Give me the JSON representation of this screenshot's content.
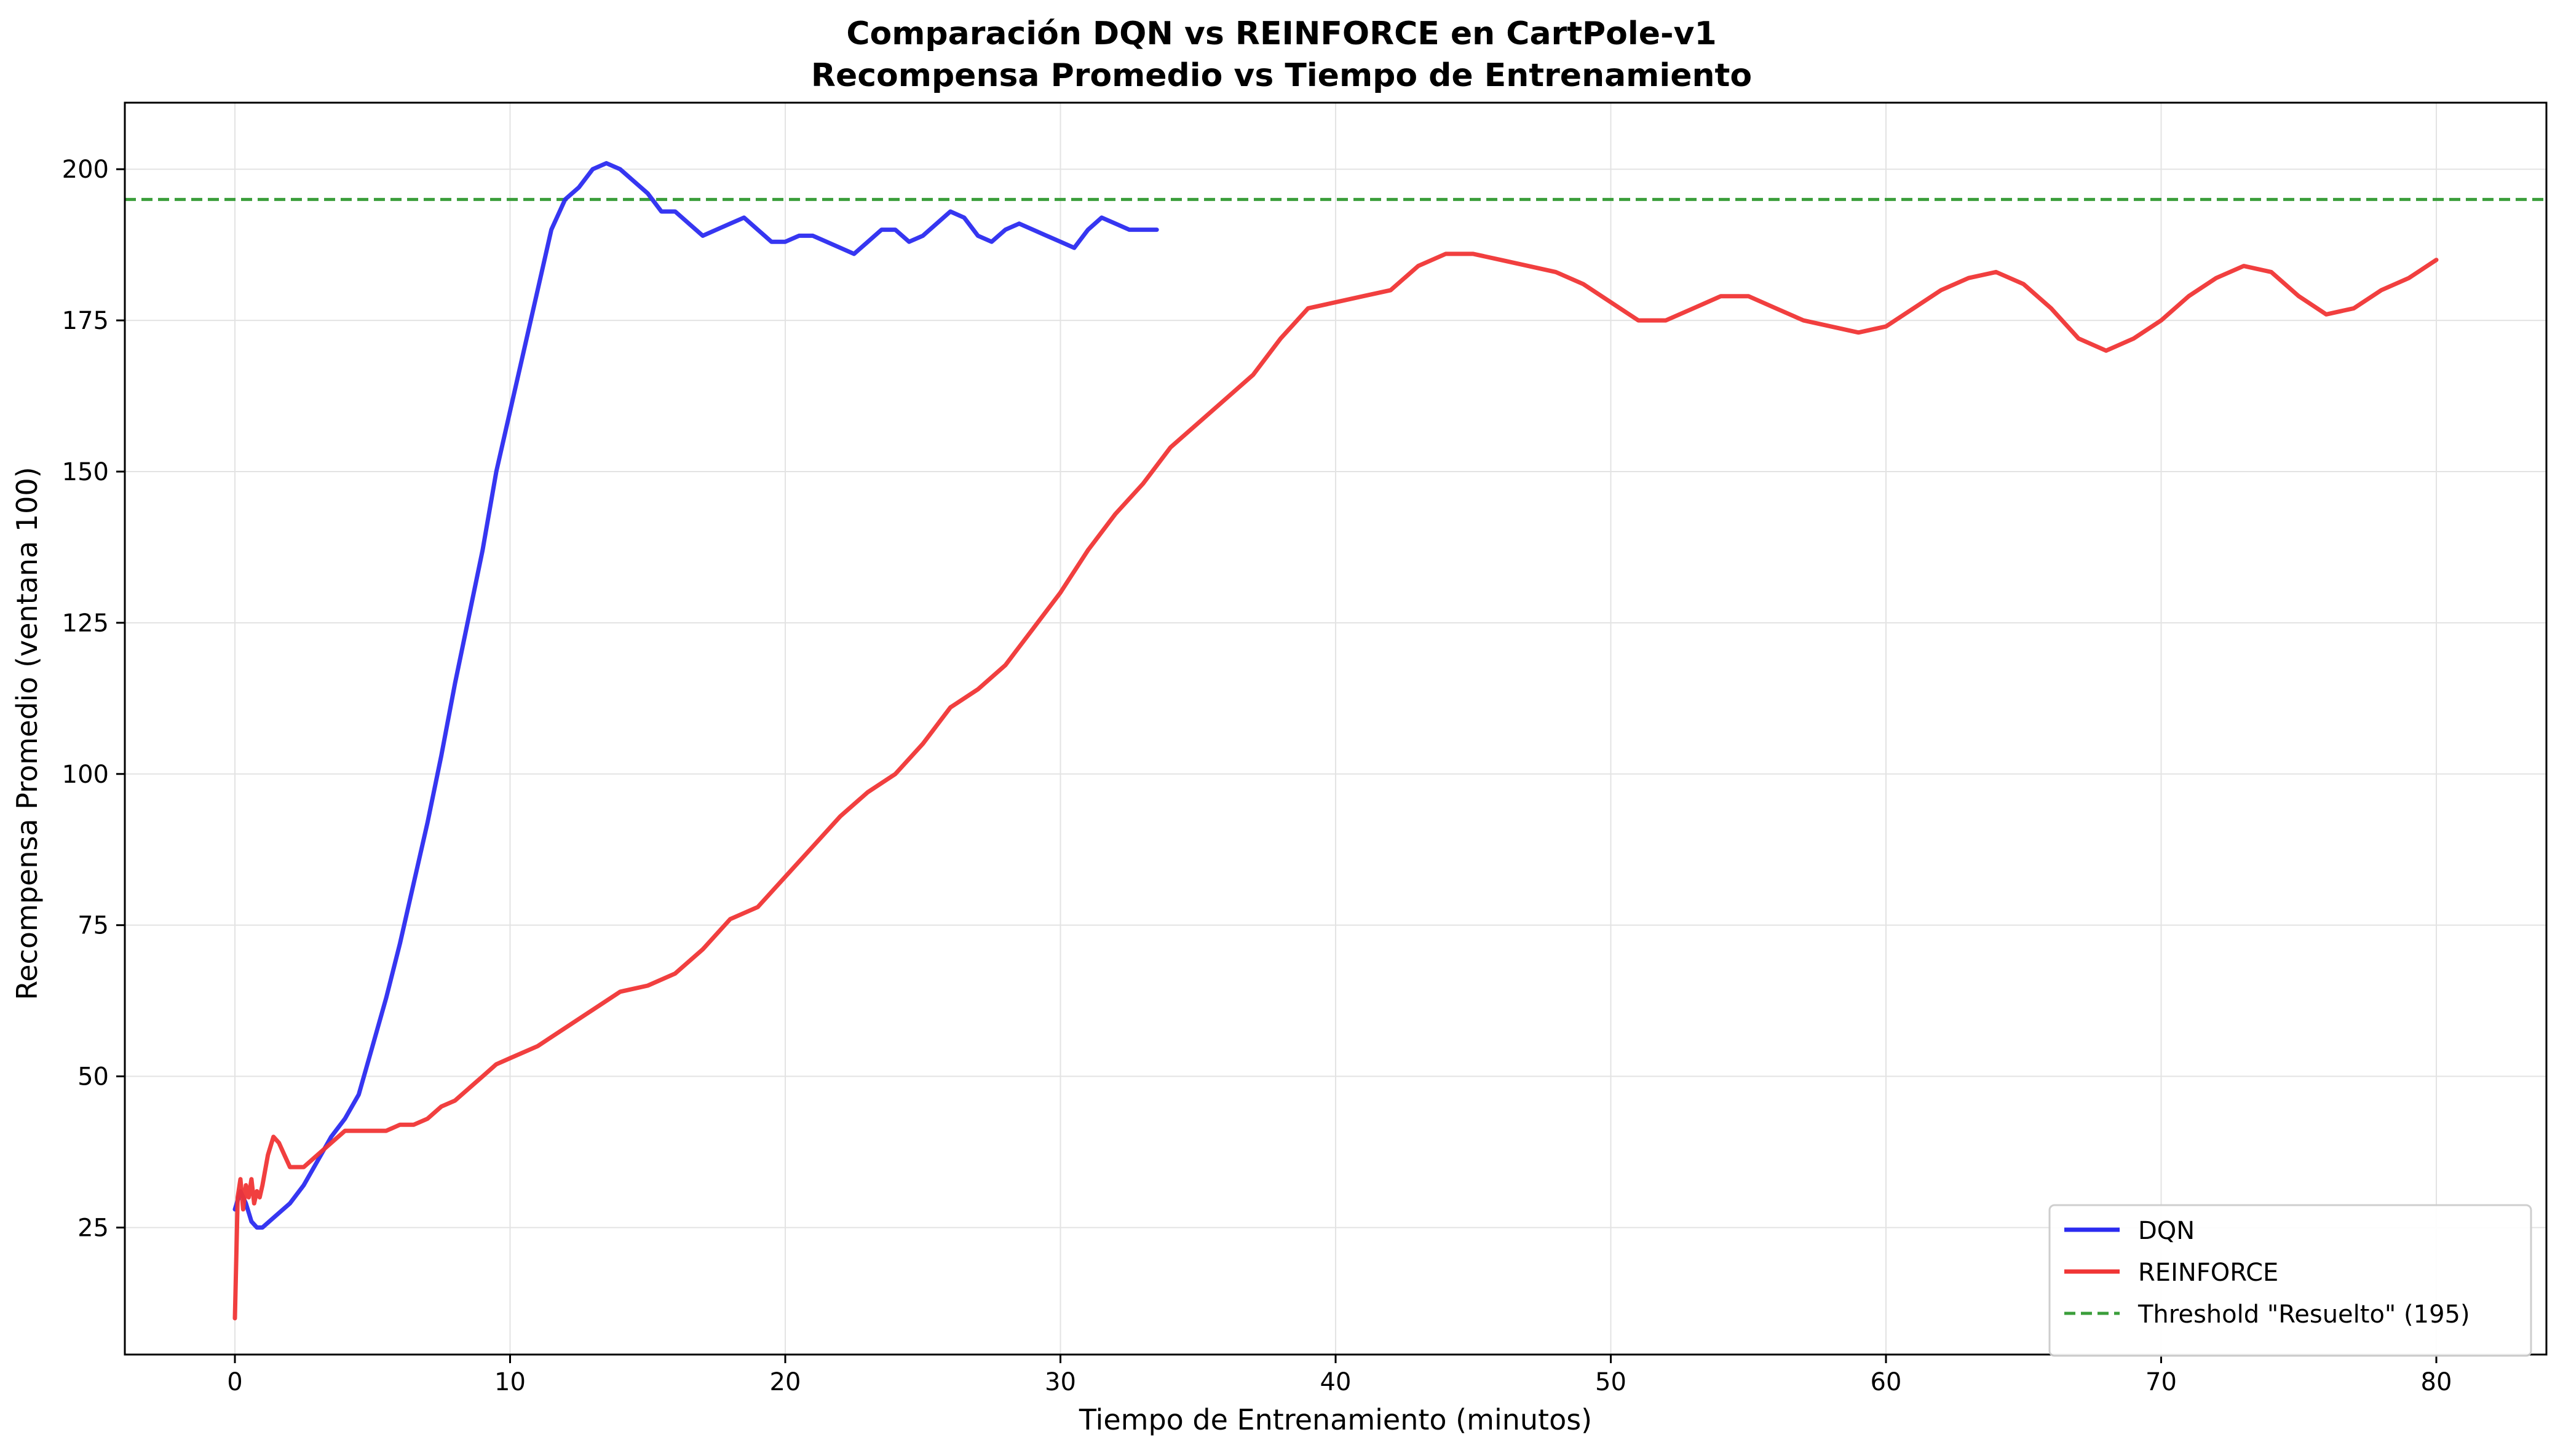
{
  "chart_data": {
    "type": "line",
    "title": "Comparación DQN vs REINFORCE en CartPole-v1",
    "subtitle": "Recompensa Promedio vs Tiempo de Entrenamiento",
    "xlabel": "Tiempo de Entrenamiento (minutos)",
    "ylabel": "Recompensa Promedio (ventana 100)",
    "xlim": [
      -4,
      84
    ],
    "ylim": [
      4,
      211
    ],
    "xticks": [
      0,
      10,
      20,
      30,
      40,
      50,
      60,
      70,
      80
    ],
    "yticks": [
      25,
      50,
      75,
      100,
      125,
      150,
      175,
      200
    ],
    "grid": true,
    "legend_position": "lower-right",
    "series": [
      {
        "name": "DQN",
        "color": "#2b2bf0",
        "x": [
          0,
          0.2,
          0.4,
          0.6,
          0.8,
          1,
          1.5,
          2,
          2.5,
          3,
          3.5,
          4,
          4.5,
          5,
          5.5,
          6,
          6.5,
          7,
          7.5,
          8,
          8.5,
          9,
          9.5,
          10,
          10.5,
          11,
          11.5,
          12,
          12.5,
          13,
          13.5,
          14,
          14.5,
          15,
          15.5,
          16,
          16.5,
          17,
          17.5,
          18,
          18.5,
          19,
          19.5,
          20,
          20.5,
          21,
          21.5,
          22,
          22.5,
          23,
          23.5,
          24,
          24.5,
          25,
          25.5,
          26,
          26.5,
          27,
          27.5,
          28,
          28.5,
          29,
          29.5,
          30,
          30.5,
          31,
          31.5,
          32,
          32.5,
          33,
          33.5
        ],
        "y": [
          28,
          31,
          29,
          26,
          25,
          25,
          27,
          29,
          32,
          36,
          40,
          43,
          47,
          55,
          63,
          72,
          82,
          92,
          103,
          115,
          126,
          137,
          150,
          160,
          170,
          180,
          190,
          195,
          197,
          200,
          201,
          200,
          198,
          196,
          193,
          193,
          191,
          189,
          190,
          191,
          192,
          190,
          188,
          188,
          189,
          189,
          188,
          187,
          186,
          188,
          190,
          190,
          188,
          189,
          191,
          193,
          192,
          189,
          188,
          190,
          191,
          190,
          189,
          188,
          187,
          190,
          192,
          191,
          190,
          190,
          190
        ],
        "x_clip": [
          0,
          33.4
        ]
      },
      {
        "name": "REINFORCE",
        "color": "#f03535",
        "x": [
          0,
          0.1,
          0.2,
          0.3,
          0.4,
          0.5,
          0.6,
          0.7,
          0.8,
          0.9,
          1,
          1.2,
          1.4,
          1.6,
          1.8,
          2,
          2.5,
          3,
          3.5,
          4,
          4.5,
          5,
          5.5,
          6,
          6.5,
          7,
          7.5,
          8,
          8.5,
          9,
          9.5,
          10,
          11,
          12,
          13,
          14,
          15,
          16,
          17,
          18,
          19,
          20,
          21,
          22,
          23,
          24,
          25,
          26,
          27,
          28,
          29,
          30,
          31,
          32,
          33,
          34,
          35,
          36,
          37,
          38,
          39,
          40,
          41,
          42,
          43,
          44,
          45,
          46,
          47,
          48,
          49,
          50,
          51,
          52,
          53,
          54,
          55,
          56,
          57,
          58,
          59,
          60,
          61,
          62,
          63,
          64,
          65,
          66,
          67,
          68,
          69,
          70,
          71,
          72,
          73,
          74,
          75,
          76,
          77,
          78,
          79,
          80
        ],
        "y": [
          10,
          30,
          33,
          28,
          32,
          30,
          33,
          29,
          31,
          30,
          32,
          37,
          40,
          39,
          37,
          35,
          35,
          37,
          39,
          41,
          41,
          41,
          41,
          42,
          42,
          43,
          45,
          46,
          48,
          50,
          52,
          53,
          55,
          58,
          61,
          64,
          65,
          67,
          71,
          76,
          78,
          83,
          88,
          93,
          97,
          100,
          105,
          111,
          114,
          118,
          124,
          130,
          137,
          143,
          148,
          154,
          158,
          162,
          166,
          172,
          177,
          178,
          179,
          180,
          184,
          186,
          186,
          185,
          184,
          183,
          181,
          178,
          175,
          175,
          177,
          179,
          179,
          177,
          175,
          174,
          173,
          174,
          177,
          180,
          182,
          183,
          181,
          177,
          172,
          170,
          172,
          175,
          179,
          182,
          184,
          183,
          179,
          176,
          177,
          180,
          182,
          185
        ],
        "x_clip": [
          0,
          80
        ]
      }
    ],
    "reference_line": {
      "name": "Threshold \"Resuelto\" (195)",
      "y": 195,
      "color": "#3a9e3a",
      "style": "dashed"
    }
  }
}
